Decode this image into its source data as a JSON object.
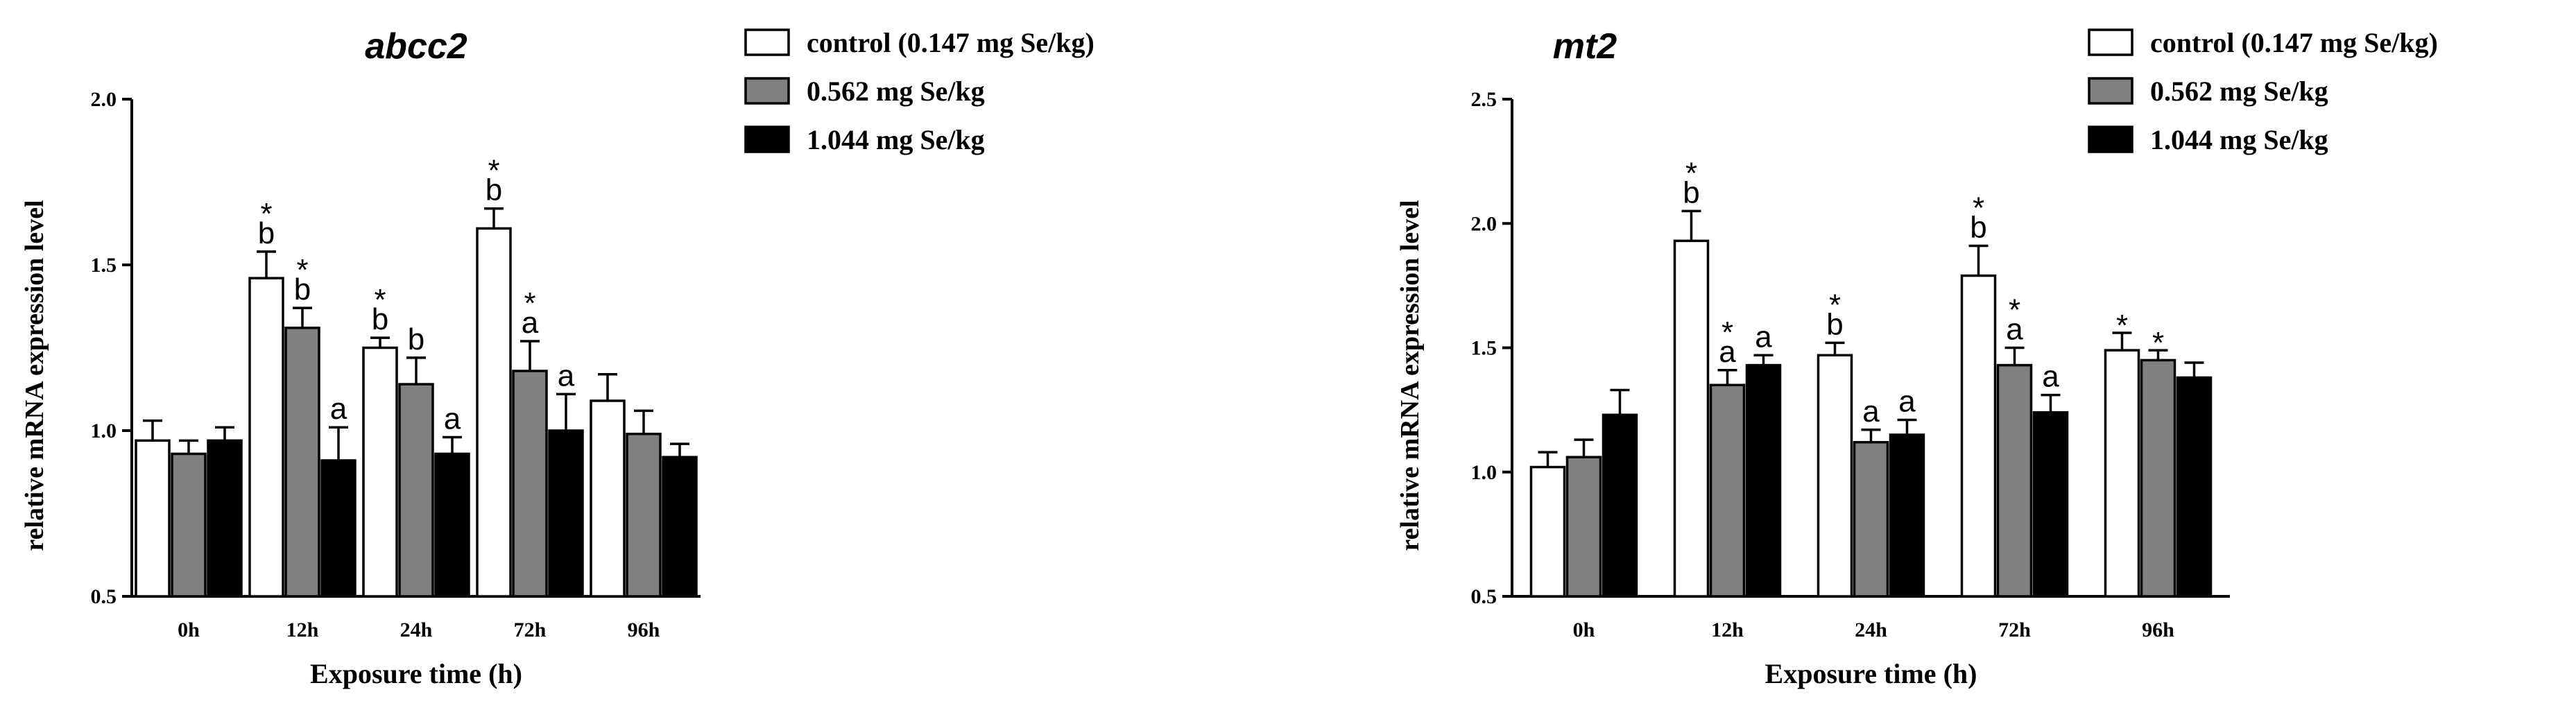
{
  "colors": {
    "control": "#ffffff",
    "mid": "#808080",
    "high": "#000000"
  },
  "chart_data": [
    {
      "type": "bar",
      "title": "abcc2",
      "xlabel": "Exposure time (h)",
      "ylabel": "relative mRNA expression level",
      "ylim": [
        0.5,
        2.0
      ],
      "yticks": [
        "0.5",
        "1.0",
        "1.5",
        "2.0"
      ],
      "categories": [
        "0h",
        "12h",
        "24h",
        "72h",
        "96h"
      ],
      "legend_position": "top-right",
      "series": [
        {
          "name": "control (0.147 mg Se/kg)",
          "color": "#ffffff",
          "values": [
            0.97,
            1.46,
            1.25,
            1.61,
            1.09
          ],
          "errors": [
            0.06,
            0.08,
            0.03,
            0.06,
            0.08
          ],
          "annotations": [
            "",
            "*\nb",
            "*\nb",
            "*\nb",
            ""
          ]
        },
        {
          "name": "0.562 mg Se/kg",
          "color": "#808080",
          "values": [
            0.93,
            1.31,
            1.14,
            1.18,
            0.99
          ],
          "errors": [
            0.04,
            0.06,
            0.08,
            0.09,
            0.07
          ],
          "annotations": [
            "",
            "*\nb",
            "b",
            "*\na",
            ""
          ]
        },
        {
          "name": "1.044 mg Se/kg",
          "color": "#000000",
          "values": [
            0.97,
            0.91,
            0.93,
            1.0,
            0.92
          ],
          "errors": [
            0.04,
            0.1,
            0.05,
            0.11,
            0.04
          ],
          "annotations": [
            "",
            "a",
            "a",
            "a",
            ""
          ]
        }
      ]
    },
    {
      "type": "bar",
      "title": "mt2",
      "xlabel": "Exposure time (h)",
      "ylabel": "relative mRNA expression level",
      "ylim": [
        0.5,
        2.5
      ],
      "yticks": [
        "0.5",
        "1.0",
        "1.5",
        "2.0",
        "2.5"
      ],
      "categories": [
        "0h",
        "12h",
        "24h",
        "72h",
        "96h"
      ],
      "legend_position": "top-right",
      "series": [
        {
          "name": "control (0.147 mg Se/kg)",
          "color": "#ffffff",
          "values": [
            1.02,
            1.93,
            1.47,
            1.79,
            1.49
          ],
          "errors": [
            0.06,
            0.12,
            0.05,
            0.12,
            0.07
          ],
          "annotations": [
            "",
            "*\nb",
            "*\nb",
            "*\nb",
            "*"
          ]
        },
        {
          "name": "0.562 mg Se/kg",
          "color": "#808080",
          "values": [
            1.06,
            1.35,
            1.12,
            1.43,
            1.45
          ],
          "errors": [
            0.07,
            0.06,
            0.05,
            0.07,
            0.04
          ],
          "annotations": [
            "",
            "*\na",
            "a",
            "*\na",
            "*"
          ]
        },
        {
          "name": "1.044 mg Se/kg",
          "color": "#000000",
          "values": [
            1.23,
            1.43,
            1.15,
            1.24,
            1.38
          ],
          "errors": [
            0.1,
            0.04,
            0.06,
            0.07,
            0.06
          ],
          "annotations": [
            "",
            "a",
            "a",
            "a",
            ""
          ]
        }
      ]
    }
  ]
}
